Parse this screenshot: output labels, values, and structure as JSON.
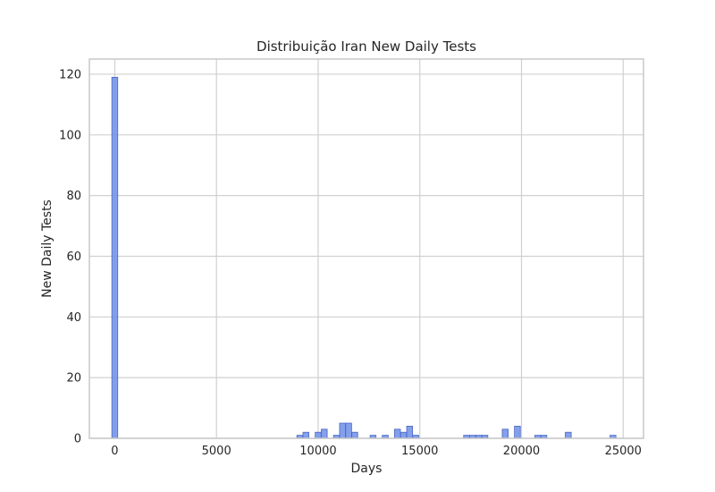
{
  "chart_data": {
    "type": "bar",
    "title": "Distribuição Iran New Daily Tests",
    "xlabel": "Days",
    "ylabel": "New Daily Tests",
    "xlim": [
      -1250,
      26000
    ],
    "ylim": [
      0,
      125
    ],
    "grid": true,
    "colors": {
      "bar_fill": "#6f8fe8",
      "bar_edge": "#4a66c4",
      "grid": "#d0d0d0",
      "spine": "#c8c8c8",
      "background": "#ffffff"
    },
    "bin_width": 290,
    "x_ticks": [
      0,
      5000,
      10000,
      15000,
      20000,
      25000
    ],
    "x_tick_labels": [
      "0",
      "5000",
      "10000",
      "15000",
      "20000",
      "25000"
    ],
    "y_ticks": [
      0,
      20,
      40,
      60,
      80,
      100,
      120
    ],
    "y_tick_labels": [
      "0",
      "20",
      "40",
      "60",
      "80",
      "100",
      "120"
    ],
    "bins": [
      {
        "x": 0,
        "count": 119
      },
      {
        "x": 9100,
        "count": 1
      },
      {
        "x": 9400,
        "count": 2
      },
      {
        "x": 10000,
        "count": 2
      },
      {
        "x": 10300,
        "count": 3
      },
      {
        "x": 10900,
        "count": 1
      },
      {
        "x": 11200,
        "count": 5
      },
      {
        "x": 11500,
        "count": 5
      },
      {
        "x": 11800,
        "count": 2
      },
      {
        "x": 12700,
        "count": 1
      },
      {
        "x": 13300,
        "count": 1
      },
      {
        "x": 13900,
        "count": 3
      },
      {
        "x": 14200,
        "count": 2
      },
      {
        "x": 14500,
        "count": 4
      },
      {
        "x": 14800,
        "count": 1
      },
      {
        "x": 17300,
        "count": 1
      },
      {
        "x": 17600,
        "count": 1
      },
      {
        "x": 17900,
        "count": 1
      },
      {
        "x": 18200,
        "count": 1
      },
      {
        "x": 19200,
        "count": 3
      },
      {
        "x": 19800,
        "count": 4
      },
      {
        "x": 20800,
        "count": 1
      },
      {
        "x": 21100,
        "count": 1
      },
      {
        "x": 22300,
        "count": 2
      },
      {
        "x": 24500,
        "count": 1
      }
    ]
  }
}
